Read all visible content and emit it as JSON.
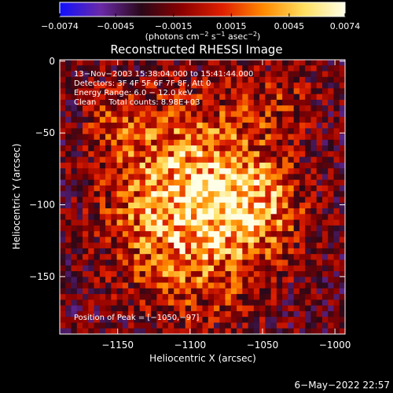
{
  "chart_data": {
    "type": "heatmap",
    "title": "Reconstructed RHESSI Image",
    "xlabel": "Heliocentric X (arcsec)",
    "ylabel": "Heliocentric Y (arcsec)",
    "xlim": [
      -1190,
      -993
    ],
    "ylim": [
      -190,
      1
    ],
    "xticks": [
      -1150,
      -1100,
      -1050,
      -1000
    ],
    "yticks": [
      0,
      -50,
      -100,
      -150
    ],
    "xtick_labels": [
      "−1150",
      "−1100",
      "−1050",
      "−1000"
    ],
    "ytick_labels": [
      "0",
      "−50",
      "−100",
      "−150"
    ],
    "colorbar": {
      "range": [
        -0.0074,
        0.0074
      ],
      "ticks": [
        -0.0074,
        -0.0045,
        -0.0015,
        0.0015,
        0.0045,
        0.0074
      ],
      "tick_labels": [
        "−0.0074",
        "−0.0045",
        "−0.0015",
        "0.0015",
        "0.0045",
        "0.0074"
      ],
      "unit_parts": [
        "(photons cm",
        "−2",
        " s",
        "−1",
        " asec",
        "−2",
        ")"
      ],
      "colormap": [
        "#1010ff",
        "#6a2aa8",
        "#2a0818",
        "#8c0000",
        "#e02000",
        "#ff8a00",
        "#ffe060",
        "#ffffe8"
      ]
    },
    "annotations": [
      "13−Nov−2003 15:38:04.000 to 15:41:44.000",
      "Detectors: 3F 4F 5F 6F 7F 8F, Att 0",
      "Energy Range: 6.0 − 12.0 keV",
      "Clean     Total counts: 8.98E+03"
    ],
    "peak_label": "Position of Peak = [−1050,−97]",
    "peak": [
      -1050,
      -97
    ],
    "source_center": [
      -1095,
      -100
    ],
    "source_extent_arcsec": [
      60,
      70
    ]
  },
  "footer_timestamp": "6−May−2022 22:57"
}
